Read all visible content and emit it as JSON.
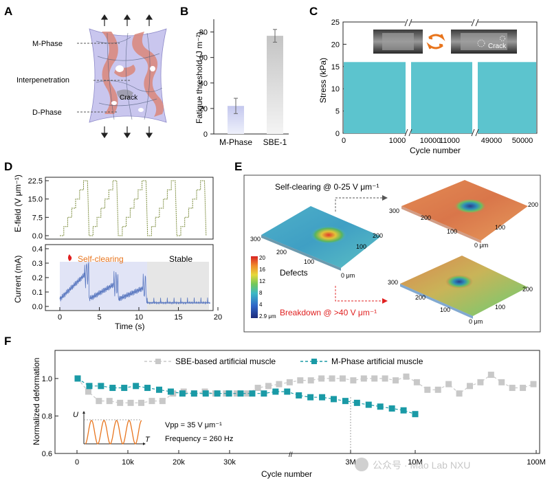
{
  "panels": [
    {
      "letter": "A"
    },
    {
      "letter": "B"
    },
    {
      "letter": "C"
    },
    {
      "letter": "D"
    },
    {
      "letter": "E"
    },
    {
      "letter": "F"
    }
  ],
  "colors": {
    "teal": "#5cc4ce",
    "gray_marker": "#c8c8c8",
    "teal_marker": "#1a9aa6",
    "orange": "#e8741c",
    "red": "#e02020",
    "lavender": "#c9c6ee",
    "pink": "#d98a80"
  },
  "panel_a": {
    "labels": [
      "M-Phase",
      "Interpenetration",
      "D-Phase"
    ],
    "crack": "Crack"
  },
  "chart_data": [
    {
      "id": "B",
      "type": "bar",
      "categories": [
        "M-Phase",
        "SBE-1"
      ],
      "values": [
        22,
        77
      ],
      "errors": [
        6,
        5
      ],
      "ylabel": "Fatigue threshold (J m⁻²)",
      "yticks": [
        "0",
        "20",
        "40",
        "60",
        "80"
      ],
      "ylim": [
        0,
        90
      ]
    },
    {
      "id": "C",
      "type": "area",
      "title": "",
      "xlabel": "Cycle number",
      "ylabel": "Stress (kPa)",
      "xticks": [
        "0",
        "1000",
        "10000",
        "11000",
        "49000",
        "50000"
      ],
      "yticks": [
        "0",
        "5",
        "10",
        "15",
        "20",
        "25"
      ],
      "ylim": [
        0,
        25
      ],
      "segments": [
        {
          "from": 0,
          "to": 1000,
          "stress": 16
        },
        {
          "from": 10000,
          "to": 11000,
          "stress": 16
        },
        {
          "from": 49000,
          "to": 50000,
          "stress": 16
        }
      ],
      "inset_label": "Crack"
    },
    {
      "id": "D-top",
      "type": "line",
      "ylabel": "E-field (V μm⁻¹)",
      "yticks": [
        "0.0",
        "7.5",
        "15.0",
        "22.5"
      ],
      "ylim": [
        0,
        22.5
      ],
      "note": "stepped ramp 0-22.5 V/um, five repeated cycles over 0-19 s"
    },
    {
      "id": "D-bottom",
      "type": "line",
      "xlabel": "Time (s)",
      "ylabel": "Current (mA)",
      "xticks": [
        "0",
        "5",
        "10",
        "15",
        "20"
      ],
      "yticks": [
        "0.0",
        "0.1",
        "0.2",
        "0.3",
        "0.4"
      ],
      "ylim": [
        0,
        0.4
      ],
      "regions": [
        "Self-clearing",
        "Stable"
      ]
    },
    {
      "id": "E",
      "type": "heatmap",
      "labels": {
        "self_clearing": "Self-clearing @ 0-25 V μm⁻¹",
        "breakdown": "Breakdown @ >40 V μm⁻¹",
        "defects": "Defects"
      },
      "colorbar": [
        "20",
        "16",
        "12",
        "8",
        "4",
        "2.9 μm"
      ],
      "axis_ticks": [
        "300",
        "200",
        "100",
        "0 μm"
      ]
    },
    {
      "id": "F",
      "type": "scatter",
      "xlabel": "Cycle number",
      "ylabel": "Normalized deformation",
      "xticks": [
        "0",
        "10k",
        "20k",
        "30k",
        "3M",
        "10M",
        "100M"
      ],
      "yticks": [
        "0.6",
        "0.8",
        "1.0"
      ],
      "ylim": [
        0.6,
        1.15
      ],
      "series": [
        {
          "name": "SBE-based artificial muscle",
          "color": "#c8c8c8",
          "values": [
            1.0,
            0.93,
            0.88,
            0.88,
            0.87,
            0.87,
            0.87,
            0.88,
            0.88,
            0.92,
            0.93,
            0.92,
            0.93,
            0.92,
            0.92,
            0.92,
            0.92,
            0.95,
            0.96,
            0.97,
            0.98,
            0.99,
            0.99,
            1.0,
            1.0,
            1.0,
            0.99,
            1.0,
            1.0,
            1.0,
            0.99,
            1.01,
            0.98,
            0.94,
            0.94,
            0.97,
            0.92,
            0.96,
            0.98,
            1.02,
            0.98,
            0.95,
            0.95,
            0.97
          ]
        },
        {
          "name": "M-Phase artificial muscle",
          "color": "#1a9aa6",
          "values": [
            1.0,
            0.96,
            0.96,
            0.95,
            0.95,
            0.96,
            0.95,
            0.94,
            0.93,
            0.92,
            0.92,
            0.92,
            0.92,
            0.92,
            0.92,
            0.92,
            0.92,
            0.93,
            0.93,
            0.91,
            0.9,
            0.9,
            0.89,
            0.88,
            0.87,
            0.86,
            0.85,
            0.84,
            0.83,
            0.81
          ]
        }
      ],
      "annotations": {
        "vpp": "Vpp = 35 V μm⁻¹",
        "frequency": "Frequency = 260 Hz",
        "u": "U",
        "t": "T"
      }
    }
  ],
  "watermark": "公众号 · Mao Lab NXU"
}
